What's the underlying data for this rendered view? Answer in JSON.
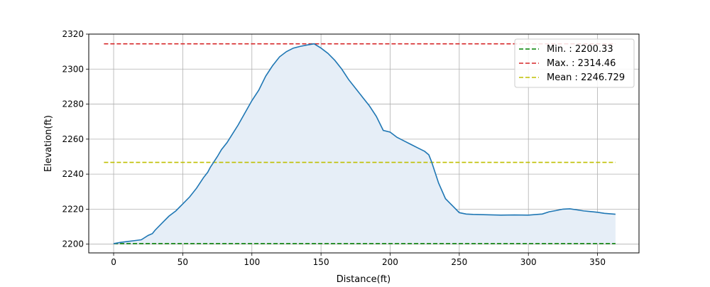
{
  "chart_data": {
    "type": "area",
    "xlabel": "Distance(ft)",
    "ylabel": "Elevation(ft)",
    "xlim": [
      -18,
      380
    ],
    "ylim": [
      2195,
      2320
    ],
    "x_ticks": [
      0,
      50,
      100,
      150,
      200,
      250,
      300,
      350
    ],
    "y_ticks": [
      2200,
      2220,
      2240,
      2260,
      2280,
      2300,
      2320
    ],
    "grid": true,
    "legend_position": "top-right",
    "profile": {
      "color": "#1f77b4",
      "fill_color": "#e6eef7",
      "x": [
        0,
        5,
        10,
        15,
        20,
        25,
        28,
        30,
        35,
        40,
        45,
        50,
        55,
        60,
        65,
        68,
        70,
        75,
        78,
        82,
        86,
        90,
        95,
        100,
        105,
        110,
        115,
        120,
        125,
        130,
        135,
        140,
        145,
        150,
        155,
        160,
        165,
        170,
        175,
        180,
        185,
        190,
        195,
        200,
        205,
        210,
        215,
        220,
        225,
        228,
        230,
        235,
        240,
        245,
        250,
        255,
        260,
        270,
        280,
        290,
        300,
        310,
        315,
        320,
        325,
        330,
        335,
        340,
        345,
        350,
        355,
        363
      ],
      "y": [
        2200.3,
        2201,
        2201.5,
        2202,
        2202.5,
        2205,
        2206,
        2208,
        2212,
        2216,
        2219,
        2223,
        2227,
        2232,
        2238,
        2241,
        2244,
        2250,
        2254,
        2258,
        2263,
        2268,
        2275,
        2282,
        2288,
        2296,
        2302,
        2307,
        2310,
        2312,
        2313,
        2313.8,
        2314.46,
        2312,
        2309,
        2305,
        2300,
        2294,
        2289,
        2284,
        2279,
        2273,
        2265,
        2264,
        2261,
        2259,
        2257,
        2255,
        2253,
        2251,
        2247,
        2235,
        2226,
        2222,
        2218,
        2217.2,
        2217,
        2216.8,
        2216.6,
        2216.7,
        2216.6,
        2217.2,
        2218.5,
        2219.2,
        2220,
        2220.2,
        2219.6,
        2219,
        2218.6,
        2218.2,
        2217.6,
        2217.1
      ]
    },
    "reference_lines": [
      {
        "label": "Min. : 2200.33",
        "value": 2200.33,
        "color": "#008000",
        "x_range": [
          0,
          363
        ]
      },
      {
        "label": "Max. : 2314.46",
        "value": 2314.46,
        "color": "#d62728",
        "x_range": [
          -7,
          363
        ]
      },
      {
        "label": "Mean : 2246.729",
        "value": 2246.729,
        "color": "#bfbf00",
        "x_range": [
          -7,
          363
        ]
      }
    ]
  }
}
